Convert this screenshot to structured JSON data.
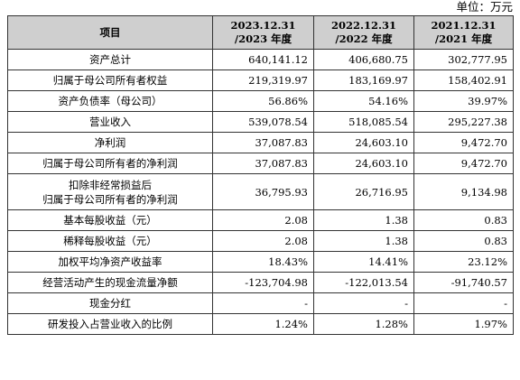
{
  "unit": "单位：万元",
  "header": {
    "item": "项目",
    "cols": [
      {
        "line1": "2023.12.31",
        "line2": "/2023 年度"
      },
      {
        "line1": "2022.12.31",
        "line2": "/2022 年度"
      },
      {
        "line1": "2021.12.31",
        "line2": "/2021 年度"
      }
    ]
  },
  "rows": [
    {
      "label": "资产总计",
      "values": [
        "640,141.12",
        "406,680.75",
        "302,777.95"
      ]
    },
    {
      "label": "归属于母公司所有者权益",
      "values": [
        "219,319.97",
        "183,169.97",
        "158,402.91"
      ]
    },
    {
      "label": "资产负债率（母公司）",
      "values": [
        "56.86%",
        "54.16%",
        "39.97%"
      ]
    },
    {
      "label": "营业收入",
      "values": [
        "539,078.54",
        "518,085.54",
        "295,227.38"
      ]
    },
    {
      "label": "净利润",
      "values": [
        "37,087.83",
        "24,603.10",
        "9,472.70"
      ]
    },
    {
      "label": "归属于母公司所有者的净利润",
      "values": [
        "37,087.83",
        "24,603.10",
        "9,472.70"
      ]
    },
    {
      "label": "扣除非经常损益后",
      "label2": "归属于母公司所有者的净利润",
      "values": [
        "36,795.93",
        "26,716.95",
        "9,134.98"
      ]
    },
    {
      "label": "基本每股收益（元）",
      "values": [
        "2.08",
        "1.38",
        "0.83"
      ]
    },
    {
      "label": "稀释每股收益（元）",
      "values": [
        "2.08",
        "1.38",
        "0.83"
      ]
    },
    {
      "label": "加权平均净资产收益率",
      "values": [
        "18.43%",
        "14.41%",
        "23.12%"
      ]
    },
    {
      "label": "经营活动产生的现金流量净额",
      "values": [
        "-123,704.98",
        "-122,013.54",
        "-91,740.57"
      ]
    },
    {
      "label": "现金分红",
      "values": [
        "-",
        "-",
        "-"
      ]
    },
    {
      "label": "研发投入占营业收入的比例",
      "values": [
        "1.24%",
        "1.28%",
        "1.97%"
      ]
    }
  ]
}
